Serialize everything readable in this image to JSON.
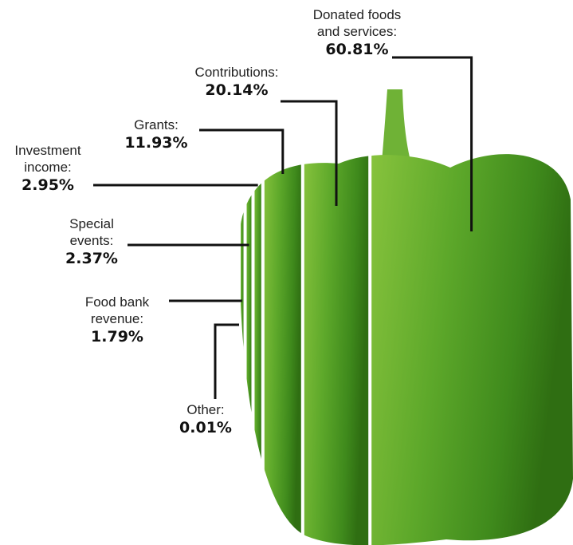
{
  "chart_data": {
    "type": "proportion",
    "categories": [
      "Donated foods\nand services:",
      "Contributions:",
      "Grants:",
      "Investment\nincome:",
      "Special\nevents:",
      "Food bank\nrevenue:",
      "Other:"
    ],
    "values": [
      60.81,
      20.14,
      11.93,
      2.95,
      2.37,
      1.79,
      0.01
    ],
    "value_labels": [
      "60.81%",
      "20.14%",
      "11.93%",
      "2.95%",
      "2.37%",
      "1.79%",
      "0.01%"
    ],
    "color": "#5a9e28"
  }
}
